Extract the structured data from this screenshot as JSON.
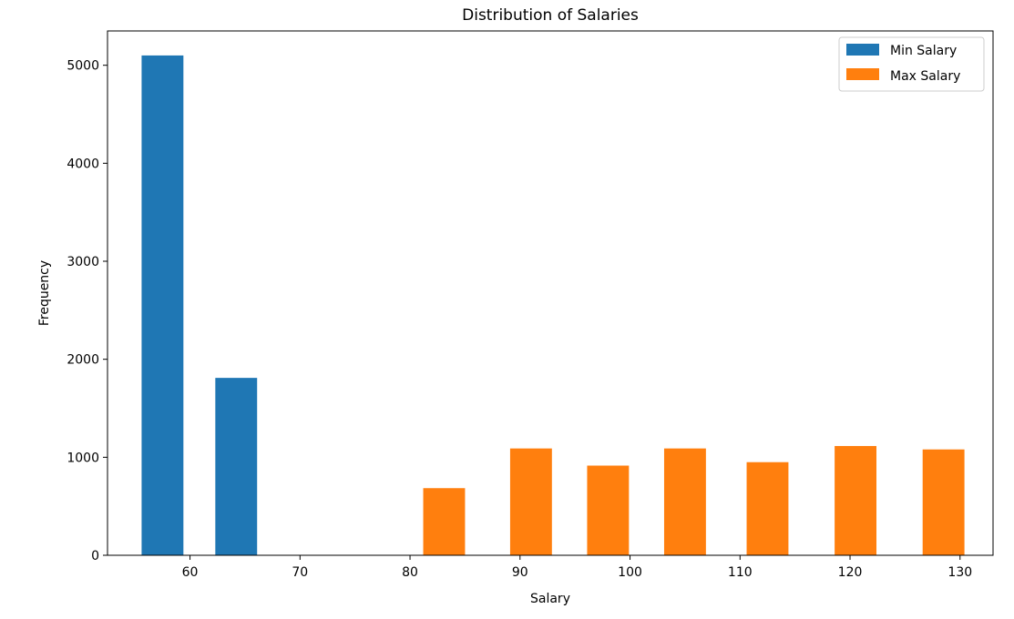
{
  "chart_data": {
    "type": "bar",
    "title": "Distribution of Salaries",
    "xlabel": "Salary",
    "ylabel": "Frequency",
    "xlim": [
      52.5,
      133
    ],
    "ylim": [
      0,
      5350
    ],
    "xticks": [
      60,
      70,
      80,
      90,
      100,
      110,
      120,
      130
    ],
    "yticks": [
      0,
      1000,
      2000,
      3000,
      4000,
      5000
    ],
    "bar_width": 3.8,
    "grid": false,
    "legend_position": "top-right",
    "series": [
      {
        "name": "Min Salary",
        "color": "#1f77b4",
        "bars": [
          {
            "x": 57.5,
            "value": 5100
          },
          {
            "x": 64.2,
            "value": 1810
          }
        ]
      },
      {
        "name": "Max Salary",
        "color": "#ff7f0e",
        "bars": [
          {
            "x": 83.1,
            "value": 685
          },
          {
            "x": 91.0,
            "value": 1090
          },
          {
            "x": 98.0,
            "value": 915
          },
          {
            "x": 105.0,
            "value": 1090
          },
          {
            "x": 112.5,
            "value": 950
          },
          {
            "x": 120.5,
            "value": 1115
          },
          {
            "x": 128.5,
            "value": 1080
          }
        ]
      }
    ]
  }
}
